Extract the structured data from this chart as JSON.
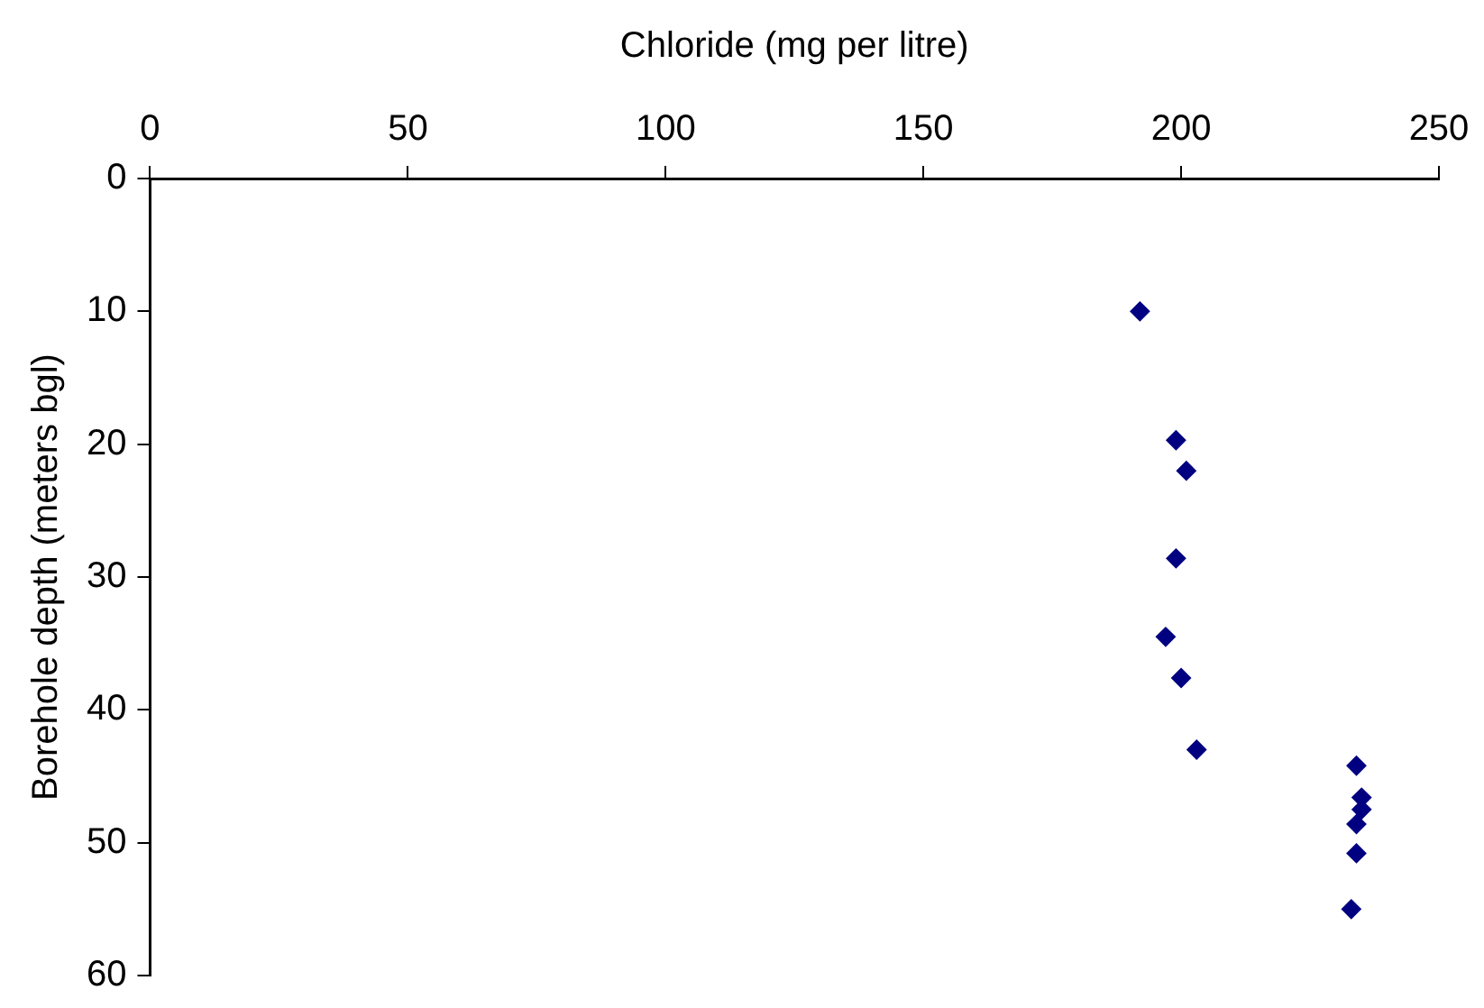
{
  "chart_data": {
    "type": "scatter",
    "xlabel": "Chloride (mg per litre)",
    "ylabel": "Borehole depth (meters bgl)",
    "x": [
      192,
      199,
      201,
      199,
      197,
      200,
      203,
      234,
      235,
      235,
      234,
      234,
      233
    ],
    "series": [
      {
        "color": "#000080",
        "values": [
          10,
          19.7,
          22,
          28.6,
          34.5,
          37.6,
          43,
          44.2,
          46.6,
          47.5,
          48.6,
          50.8,
          55
        ]
      }
    ],
    "xlim": [
      0,
      250
    ],
    "xticks": [
      0,
      50,
      100,
      150,
      200,
      250
    ],
    "ylim": [
      60,
      0
    ],
    "yticks": [
      0,
      10,
      20,
      30,
      40,
      50,
      60
    ],
    "grid": false,
    "legend": false,
    "marker": "diamond"
  }
}
